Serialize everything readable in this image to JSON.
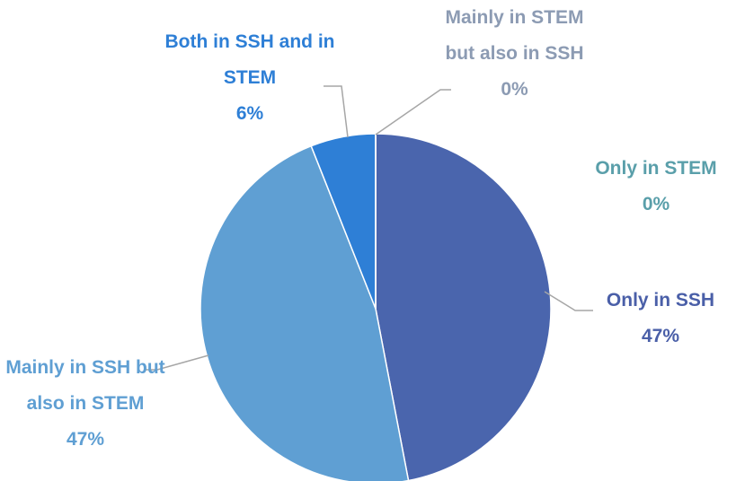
{
  "chart_data": {
    "type": "pie",
    "categories": [
      "Only in SSH",
      "Mainly in SSH but also in STEM",
      "Both in SSH and in STEM",
      "Mainly in STEM but also in SSH",
      "Only in STEM"
    ],
    "values": [
      47,
      47,
      6,
      0,
      0
    ],
    "value_labels": [
      "47%",
      "47%",
      "6%",
      "0%",
      "0%"
    ],
    "colors": [
      "#4a65ad",
      "#5f9fd3",
      "#2e7fd6",
      "#8c9bb3",
      "#5a9faa"
    ],
    "label_colors": [
      "#4a5fa8",
      "#5f9fd3",
      "#2e7fd6",
      "#8c9bb3",
      "#5a9faa"
    ]
  }
}
